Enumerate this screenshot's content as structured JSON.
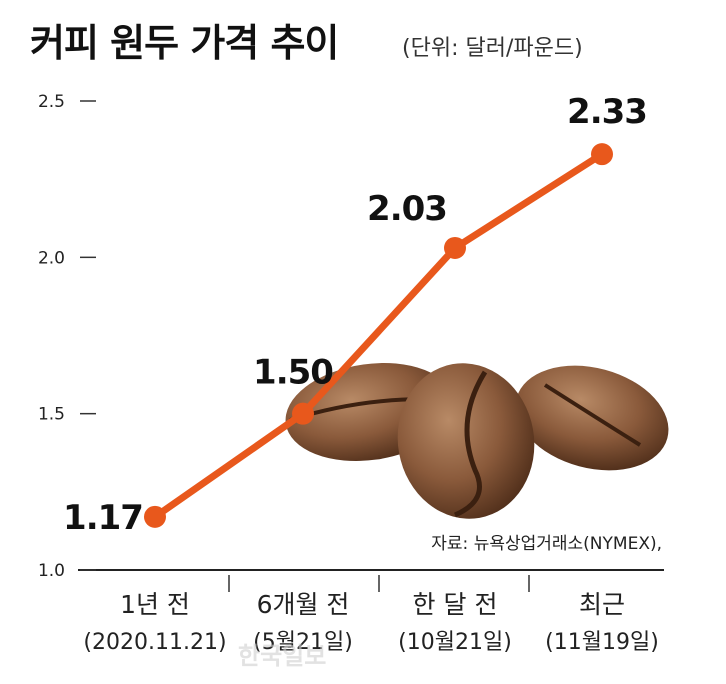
{
  "chart_data": {
    "type": "line",
    "title": "커피 원두 가격 추이",
    "subtitle": "(단위: 달러/파운드)",
    "categories": [
      "1년 전",
      "6개월 전",
      "한 달 전",
      "최근"
    ],
    "category_sublabels": [
      "(2020.11.21)",
      "(5월21일)",
      "(10월21일)",
      "(11월19일)"
    ],
    "series": [
      {
        "values": [
          1.17,
          1.5,
          2.03,
          2.33
        ],
        "labels": [
          "1.17",
          "1.50",
          "2.03",
          "2.33"
        ]
      }
    ],
    "yticks": [
      "1.0",
      "1.5",
      "2.0",
      "2.5"
    ],
    "ylim": [
      1.0,
      2.5
    ],
    "line_color": "#e8581c",
    "grid": false,
    "source": "자료: 뉴욕상업거래소(NYMEX),",
    "watermark": "한국일보"
  }
}
